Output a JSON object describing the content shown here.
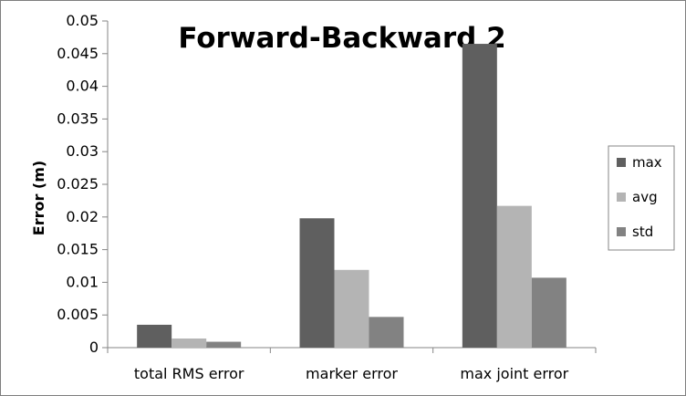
{
  "chart_data": {
    "type": "bar",
    "title": "Forward-Backward 2",
    "xlabel": "",
    "ylabel": "Error (m)",
    "categories": [
      "total RMS error",
      "marker error",
      "max joint error"
    ],
    "series": [
      {
        "name": "max",
        "color": "#5f5f5f",
        "values": [
          0.0035,
          0.0198,
          0.0465
        ]
      },
      {
        "name": "avg",
        "color": "#b4b4b4",
        "values": [
          0.0014,
          0.0119,
          0.0217
        ]
      },
      {
        "name": "std",
        "color": "#828282",
        "values": [
          0.0009,
          0.0047,
          0.0107
        ]
      }
    ],
    "ylim": [
      0,
      0.05
    ],
    "yticks": [
      "0",
      "0.005",
      "0.01",
      "0.015",
      "0.02",
      "0.025",
      "0.03",
      "0.035",
      "0.04",
      "0.045",
      "0.05"
    ],
    "grid": false,
    "legend": "right"
  }
}
